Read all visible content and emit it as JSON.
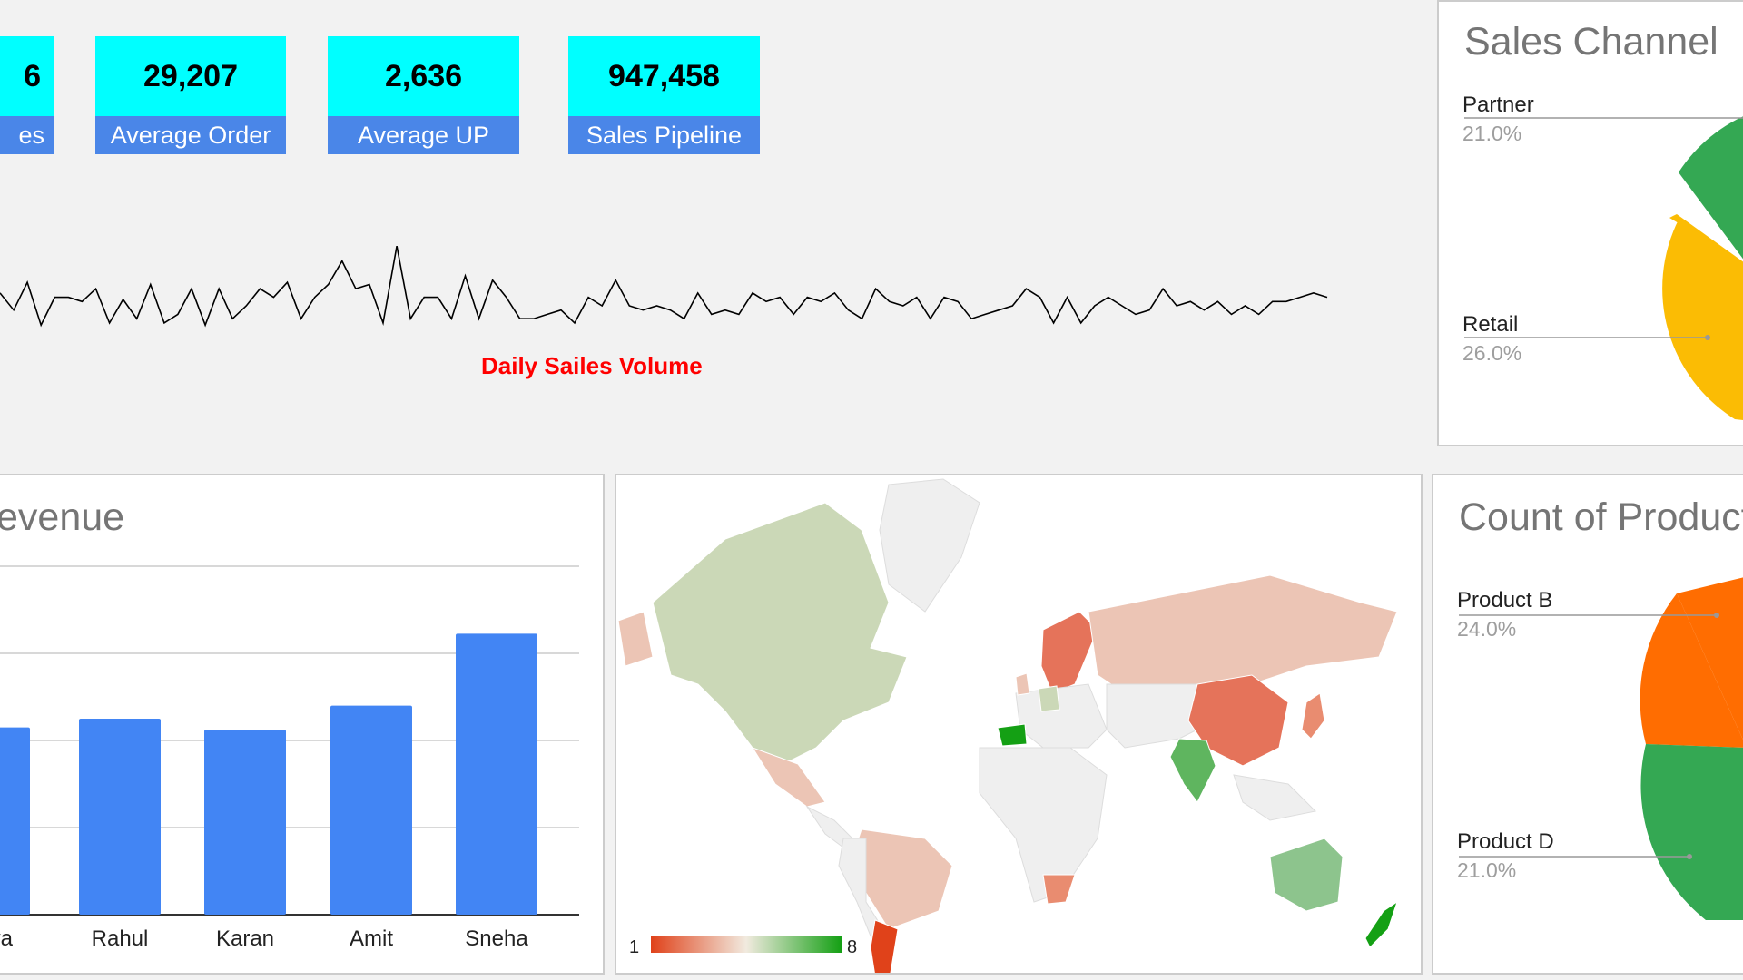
{
  "kpis": [
    {
      "value": "6",
      "label": "es"
    },
    {
      "value": "29,207",
      "label": "Average Order"
    },
    {
      "value": "2,636",
      "label": "Average UP"
    },
    {
      "value": "947,458",
      "label": "Sales Pipeline"
    }
  ],
  "colors": {
    "kpi_value_bg": "#00ffff",
    "kpi_label_bg": "#4a86e8",
    "bar": "#4285f4",
    "line_title": "#ff0000",
    "map_low": "#e0421a",
    "map_high": "#14a014",
    "pie_green": "#34a853",
    "pie_yellow": "#fbbc04",
    "pie_orange": "#ff6d01"
  },
  "line_chart": {
    "title": "Daily Sailes Volume"
  },
  "sales_channel": {
    "title": "Sales Channel",
    "labels": [
      {
        "name": "Partner",
        "pct": "21.0%"
      },
      {
        "name": "Retail",
        "pct": "26.0%"
      }
    ]
  },
  "revenue": {
    "title": "evenue"
  },
  "products": {
    "title": "Count of Product",
    "labels": [
      {
        "name": "Product B",
        "pct": "24.0%"
      },
      {
        "name": "Product D",
        "pct": "21.0%"
      }
    ]
  },
  "map": {
    "legend_min": "1",
    "legend_max": "8"
  },
  "chart_data": [
    {
      "type": "line",
      "title": "Daily Sailes Volume",
      "y": [
        30,
        22,
        35,
        15,
        28,
        28,
        26,
        32,
        16,
        27,
        18,
        34,
        16,
        20,
        32,
        15,
        32,
        18,
        24,
        32,
        28,
        35,
        18,
        28,
        34,
        45,
        32,
        34,
        16,
        52,
        18,
        28,
        28,
        18,
        38,
        18,
        36,
        28,
        18,
        18,
        20,
        22,
        16,
        28,
        24,
        36,
        24,
        22,
        24,
        22,
        18,
        30,
        20,
        22,
        20,
        30,
        26,
        28,
        20,
        28,
        26,
        30,
        22,
        18,
        32,
        26,
        24,
        28,
        18,
        28,
        26,
        18,
        20,
        22,
        24,
        32,
        28,
        16,
        28,
        16,
        24,
        28,
        24,
        20,
        22,
        32,
        24,
        26,
        22,
        26,
        20,
        24,
        20,
        26,
        26,
        28,
        30,
        28
      ]
    },
    {
      "type": "bar",
      "title": "evenue",
      "categories": [
        "ya",
        "Rahul",
        "Karan",
        "Amit",
        "Sneha"
      ],
      "values": [
        86,
        90,
        85,
        96,
        129
      ],
      "ylim": [
        0,
        160
      ]
    },
    {
      "type": "pie",
      "title": "Sales Channel",
      "slices": [
        {
          "name": "Partner",
          "value": 21.0
        },
        {
          "name": "Retail",
          "value": 26.0
        }
      ]
    },
    {
      "type": "pie",
      "title": "Count of Product",
      "slices": [
        {
          "name": "Product B",
          "value": 24.0
        },
        {
          "name": "Product D",
          "value": 21.0
        }
      ]
    }
  ]
}
